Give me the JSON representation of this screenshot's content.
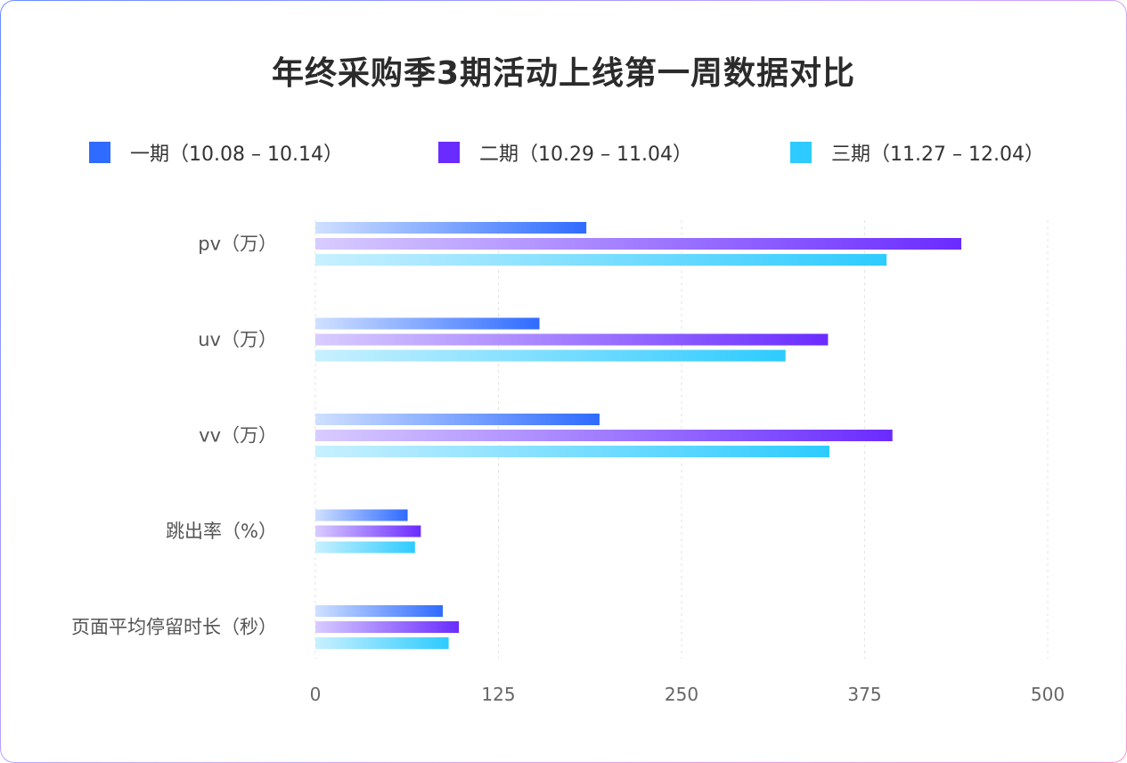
{
  "chart_data": {
    "type": "bar",
    "orientation": "horizontal",
    "title": "年终采购季3期活动上线第一周数据对比",
    "categories": [
      "pv（万）",
      "uv（万）",
      "vv（万）",
      "跳出率（%）",
      "页面平均停留时长（秒）"
    ],
    "series": [
      {
        "name": "一期（10.08 – 10.14）",
        "color": "#2f6bff",
        "values": [
          185,
          153,
          194,
          63,
          87
        ]
      },
      {
        "name": "二期（10.29 – 11.04）",
        "color": "#6a2bff",
        "values": [
          441,
          350,
          394,
          72,
          98
        ]
      },
      {
        "name": "三期（11.27 – 12.04）",
        "color": "#2dcbff",
        "values": [
          390,
          321,
          351,
          68,
          91
        ]
      }
    ],
    "xlim": [
      0,
      500
    ],
    "xticks": [
      "0",
      "125",
      "250",
      "375",
      "500"
    ],
    "grid": "vertical dashed",
    "legend": "top"
  }
}
